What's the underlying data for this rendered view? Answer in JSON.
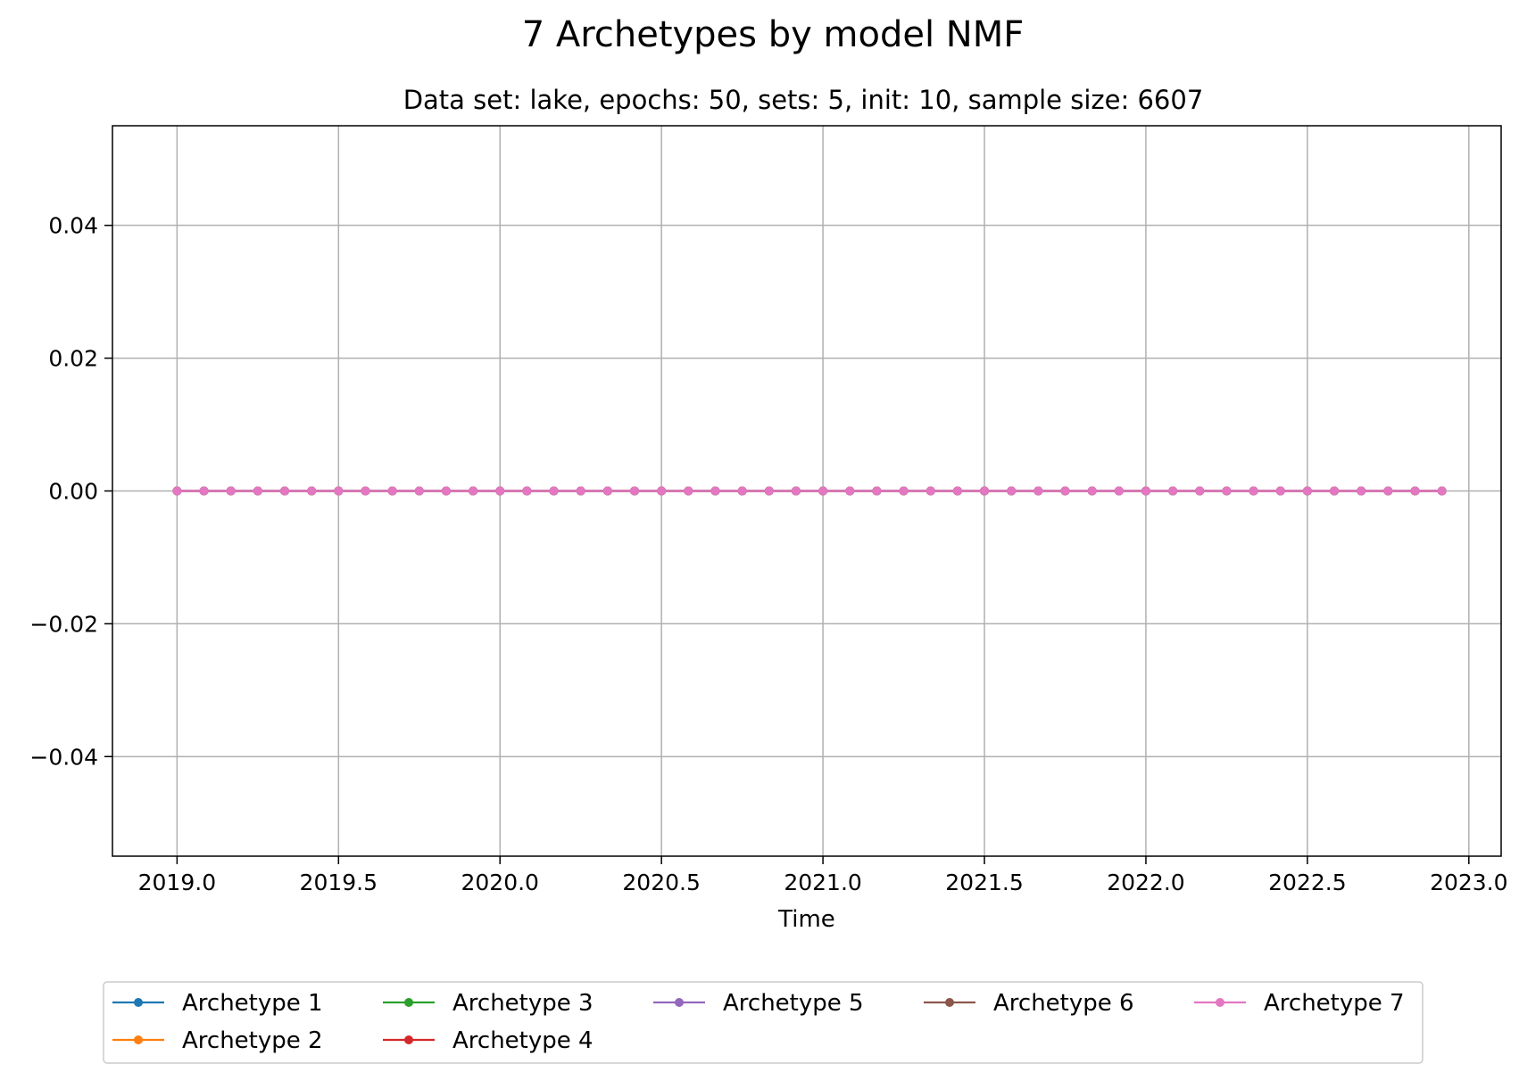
{
  "chart_data": {
    "type": "line",
    "title": "7 Archetypes by model NMF",
    "subtitle": "Data set: lake, epochs: 50, sets: 5, init: 10, sample size: 6607",
    "xlabel": "Time",
    "ylabel": "",
    "xlim": [
      2018.8,
      2023.1
    ],
    "ylim": [
      -0.055,
      0.055
    ],
    "xticks": [
      2019.0,
      2019.5,
      2020.0,
      2020.5,
      2021.0,
      2021.5,
      2022.0,
      2022.5,
      2023.0
    ],
    "xtick_labels": [
      "2019.0",
      "2019.5",
      "2020.0",
      "2020.5",
      "2021.0",
      "2021.5",
      "2022.0",
      "2022.5",
      "2023.0"
    ],
    "yticks": [
      0.04,
      0.02,
      0.0,
      -0.02,
      -0.04
    ],
    "ytick_labels": [
      "0.04",
      "0.02",
      "0.00",
      "−0.02",
      "−0.04"
    ],
    "grid": true,
    "legend_position": "bottom-center",
    "x_start": 2019.0,
    "x_step_months": 1,
    "num_points": 48,
    "series": [
      {
        "name": "Archetype 1",
        "color": "#1f77b4",
        "value": 0.0
      },
      {
        "name": "Archetype 2",
        "color": "#ff7f0e",
        "value": 0.0
      },
      {
        "name": "Archetype 3",
        "color": "#2ca02c",
        "value": 0.0
      },
      {
        "name": "Archetype 4",
        "color": "#d62728",
        "value": 0.0
      },
      {
        "name": "Archetype 5",
        "color": "#9467bd",
        "value": 0.0
      },
      {
        "name": "Archetype 6",
        "color": "#8c564b",
        "value": 0.0
      },
      {
        "name": "Archetype 7",
        "color": "#e377c2",
        "value": 0.0
      }
    ]
  }
}
